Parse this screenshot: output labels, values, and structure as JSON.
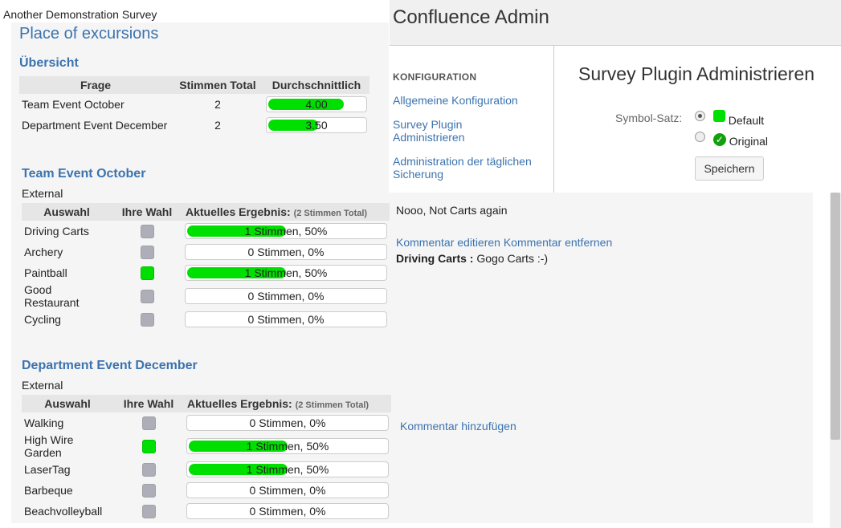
{
  "survey": {
    "title": "Another Demonstration Survey",
    "place_title": "Place of excursions",
    "overview": {
      "heading": "Übersicht",
      "columns": [
        "Frage",
        "Stimmen Total",
        "Durchschnittlich"
      ],
      "rows": [
        {
          "question": "Team Event October",
          "votes": "2",
          "average": "4.00",
          "average_value": 4.0,
          "average_max": 5
        },
        {
          "question": "Department Event December",
          "votes": "2",
          "average": "3.50",
          "average_value": 3.5,
          "average_max": 5
        }
      ]
    },
    "questions": [
      {
        "heading": "Team Event October",
        "subtitle": "External",
        "columns": {
          "choice": "Auswahl",
          "your_choice": "Ihre Wahl",
          "result": "Aktuelles Ergebnis:",
          "result_total": "(2 Stimmen Total)"
        },
        "answers": [
          {
            "label": "Driving Carts",
            "selected": false,
            "result": "1 Stimmen, 50%",
            "fraction": 0.5
          },
          {
            "label": "Archery",
            "selected": false,
            "result": "0 Stimmen, 0%",
            "fraction": 0
          },
          {
            "label": "Paintball",
            "selected": true,
            "result": "1 Stimmen, 50%",
            "fraction": 0.5
          },
          {
            "label": "Good Restaurant",
            "selected": false,
            "result": "0 Stimmen, 0%",
            "fraction": 0
          },
          {
            "label": "Cycling",
            "selected": false,
            "result": "0 Stimmen, 0%",
            "fraction": 0
          }
        ],
        "comments": {
          "text": "Nooo, Not Carts again",
          "edit_link": "Kommentar editieren",
          "remove_link": "Kommentar entfernen",
          "other_author": "Driving Carts :",
          "other_text": "Gogo Carts :-)"
        }
      },
      {
        "heading": "Department Event December",
        "subtitle": "External",
        "columns": {
          "choice": "Auswahl",
          "your_choice": "Ihre Wahl",
          "result": "Aktuelles Ergebnis:",
          "result_total": "(2 Stimmen Total)"
        },
        "answers": [
          {
            "label": "Walking",
            "selected": false,
            "result": "0 Stimmen, 0%",
            "fraction": 0
          },
          {
            "label": "High Wire Garden",
            "selected": true,
            "result": "1 Stimmen, 50%",
            "fraction": 0.5
          },
          {
            "label": "LaserTag",
            "selected": false,
            "result": "1 Stimmen, 50%",
            "fraction": 0.5
          },
          {
            "label": "Barbeque",
            "selected": false,
            "result": "0 Stimmen, 0%",
            "fraction": 0
          },
          {
            "label": "Beachvolleyball",
            "selected": false,
            "result": "0 Stimmen, 0%",
            "fraction": 0
          }
        ],
        "comments": {
          "add_link": "Kommentar hinzufügen"
        }
      }
    ]
  },
  "admin": {
    "title": "Confluence Admin",
    "nav": {
      "heading": "KONFIGURATION",
      "items": [
        {
          "label": "Allgemeine Konfiguration"
        },
        {
          "label": "Survey Plugin Administrieren"
        },
        {
          "label": "Administration der täglichen Sicherung"
        }
      ]
    },
    "page_title": "Survey Plugin Administrieren",
    "symbol_label": "Symbol-Satz:",
    "options": [
      {
        "label": "Default",
        "checked": true,
        "icon": "green-square-icon"
      },
      {
        "label": "Original",
        "checked": false,
        "icon": "green-check-circle-icon"
      }
    ],
    "save_label": "Speichern"
  },
  "colors": {
    "link": "#3b73af",
    "bar_fill": "#00e000",
    "check_green": "#12a00f"
  }
}
